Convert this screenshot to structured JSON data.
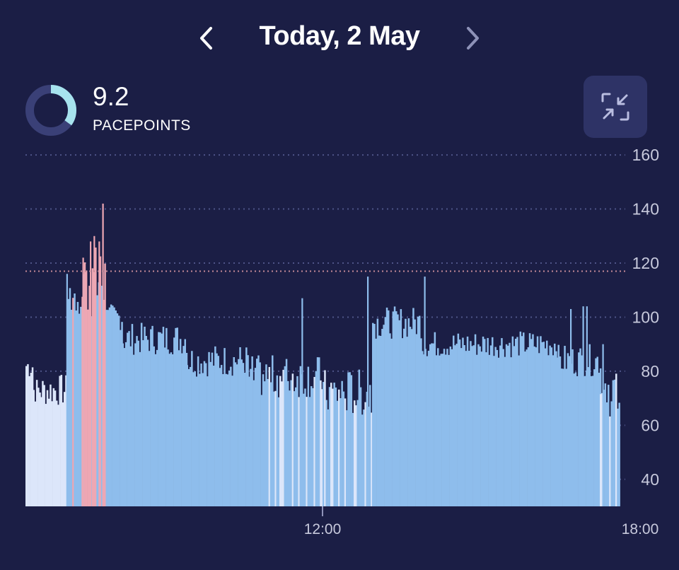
{
  "header": {
    "title": "Today, 2 May",
    "prev_icon": "chevron-left-icon",
    "next_icon": "chevron-right-icon"
  },
  "summary": {
    "value": "9.2",
    "label": "PACEPOINTS",
    "ring_fraction": 0.35,
    "ring_colors": {
      "filled": "#a7e3ee",
      "track": "#3a4077"
    }
  },
  "collapse_button": {
    "icon": "collapse-arrows-icon"
  },
  "colors": {
    "background": "#1b1e45",
    "bar_main": "#8ebdec",
    "bar_light": "#dce6fa",
    "bar_high": "#eea7b3",
    "threshold_line": "#c58a96",
    "gridline": "#4e5488"
  },
  "chart_data": {
    "type": "bar",
    "y_ticks": [
      40,
      60,
      80,
      100,
      120,
      140,
      160
    ],
    "y_tick_labels": [
      "40",
      "60",
      "80",
      "100",
      "120",
      "140",
      "160"
    ],
    "ylim": [
      30,
      165
    ],
    "threshold": 117,
    "x_tick_labels": [
      "12:00",
      "18:00"
    ],
    "segments": [
      {
        "from": 0.0,
        "to": 0.3,
        "base": 82,
        "noise": 5,
        "color": "light"
      },
      {
        "from": 0.3,
        "to": 0.6,
        "base": 73,
        "noise": 5,
        "color": "light"
      },
      {
        "from": 0.6,
        "to": 1.7,
        "base": 73,
        "noise": 6,
        "color": "light"
      },
      {
        "from": 1.7,
        "to": 2.3,
        "base": 108,
        "noise": 8,
        "color": "mixed"
      },
      {
        "from": 2.3,
        "to": 3.3,
        "base": 113,
        "noise": 14,
        "color": "mixed"
      },
      {
        "from": 3.3,
        "to": 3.9,
        "base": 100,
        "noise": 5,
        "color": "main"
      },
      {
        "from": 3.9,
        "to": 6.5,
        "base": 92,
        "noise": 6,
        "color": "main"
      },
      {
        "from": 6.5,
        "to": 9.0,
        "base": 84,
        "noise": 6,
        "color": "main"
      },
      {
        "from": 9.0,
        "to": 12.0,
        "base": 78,
        "noise": 8,
        "color": "stripe"
      },
      {
        "from": 12.0,
        "to": 14.0,
        "base": 72,
        "noise": 9,
        "color": "stripe"
      },
      {
        "from": 14.0,
        "to": 16.0,
        "base": 98,
        "noise": 6,
        "color": "main"
      },
      {
        "from": 16.0,
        "to": 21.5,
        "base": 90,
        "noise": 5,
        "color": "main"
      },
      {
        "from": 21.5,
        "to": 23.2,
        "base": 84,
        "noise": 6,
        "color": "main"
      },
      {
        "from": 23.2,
        "to": 24.0,
        "base": 72,
        "noise": 9,
        "color": "stripe"
      }
    ],
    "spikes": [
      {
        "x": 1.65,
        "value": 116
      },
      {
        "x": 2.3,
        "value": 122
      },
      {
        "x": 2.6,
        "value": 128
      },
      {
        "x": 2.75,
        "value": 130
      },
      {
        "x": 2.95,
        "value": 128
      },
      {
        "x": 3.1,
        "value": 142
      },
      {
        "x": 11.15,
        "value": 107
      },
      {
        "x": 13.8,
        "value": 115
      },
      {
        "x": 16.1,
        "value": 115
      },
      {
        "x": 22.0,
        "value": 103
      },
      {
        "x": 22.5,
        "value": 104
      },
      {
        "x": 22.65,
        "value": 104
      },
      {
        "x": 23.3,
        "value": 90
      }
    ]
  }
}
